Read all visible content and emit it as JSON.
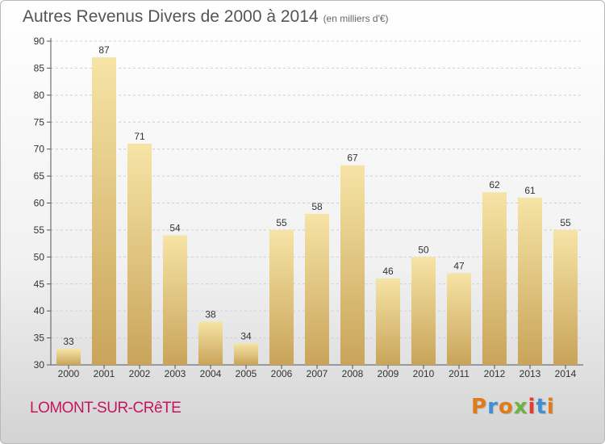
{
  "header": {
    "title": "Autres Revenus Divers de 2000 à 2014",
    "subtitle": "(en milliers d'€)"
  },
  "location": "LOMONT-SUR-CRêTE",
  "logo": {
    "text": "Proxiti",
    "letter_colors": [
      "#e07b1a",
      "#3f8fd2",
      "#e07b1a",
      "#6cb33f",
      "#e63b2e",
      "#3f8fd2",
      "#e07b1a"
    ]
  },
  "chart_data": {
    "type": "bar",
    "categories": [
      "2000",
      "2001",
      "2002",
      "2003",
      "2004",
      "2005",
      "2006",
      "2007",
      "2008",
      "2009",
      "2010",
      "2011",
      "2012",
      "2013",
      "2014"
    ],
    "values": [
      33,
      87,
      71,
      54,
      38,
      34,
      55,
      58,
      67,
      46,
      50,
      47,
      62,
      61,
      55
    ],
    "ylim": [
      30,
      90
    ],
    "yticks": [
      30,
      35,
      40,
      45,
      50,
      55,
      60,
      65,
      70,
      75,
      80,
      85,
      90
    ],
    "grid": true,
    "bar_color_top": "#f6e4a6",
    "bar_color_bottom": "#c9a45a"
  }
}
